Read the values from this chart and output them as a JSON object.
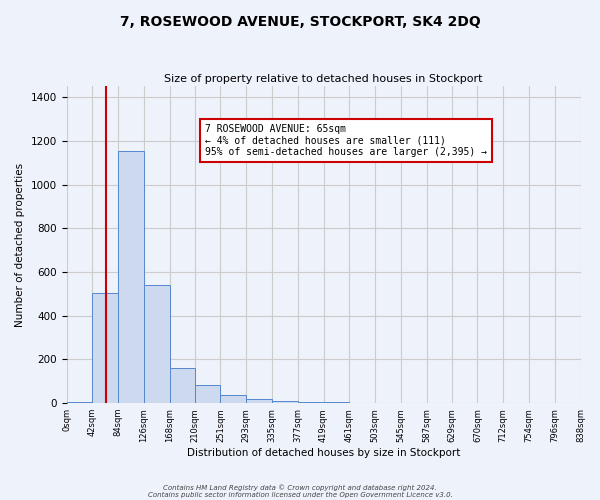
{
  "title": "7, ROSEWOOD AVENUE, STOCKPORT, SK4 2DQ",
  "subtitle": "Size of property relative to detached houses in Stockport",
  "xlabel": "Distribution of detached houses by size in Stockport",
  "ylabel": "Number of detached properties",
  "bin_edges": [
    0,
    42,
    84,
    126,
    168,
    210,
    251,
    293,
    335,
    377,
    419,
    461,
    503,
    545,
    587,
    629,
    670,
    712,
    754,
    796,
    838
  ],
  "bin_labels": [
    "0sqm",
    "42sqm",
    "84sqm",
    "126sqm",
    "168sqm",
    "210sqm",
    "251sqm",
    "293sqm",
    "335sqm",
    "377sqm",
    "419sqm",
    "461sqm",
    "503sqm",
    "545sqm",
    "587sqm",
    "629sqm",
    "670sqm",
    "712sqm",
    "754sqm",
    "796sqm",
    "838sqm"
  ],
  "counts": [
    5,
    505,
    1155,
    540,
    160,
    83,
    35,
    20,
    10,
    5,
    3,
    0,
    0,
    0,
    0,
    0,
    0,
    0,
    0,
    0
  ],
  "bar_facecolor": "#ccd9ef",
  "bar_edgecolor": "#5588cc",
  "vline_color": "#cc0000",
  "vline_x": 65,
  "annotation_text": "7 ROSEWOOD AVENUE: 65sqm\n← 4% of detached houses are smaller (111)\n95% of semi-detached houses are larger (2,395) →",
  "annotation_box_edgecolor": "#cc0000",
  "annotation_box_facecolor": "#ffffff",
  "ylim": [
    0,
    1450
  ],
  "yticks": [
    0,
    200,
    400,
    600,
    800,
    1000,
    1200,
    1400
  ],
  "grid_color": "#cccccc",
  "background_color": "#eef2fb",
  "footer_line1": "Contains HM Land Registry data © Crown copyright and database right 2024.",
  "footer_line2": "Contains public sector information licensed under the Open Government Licence v3.0."
}
